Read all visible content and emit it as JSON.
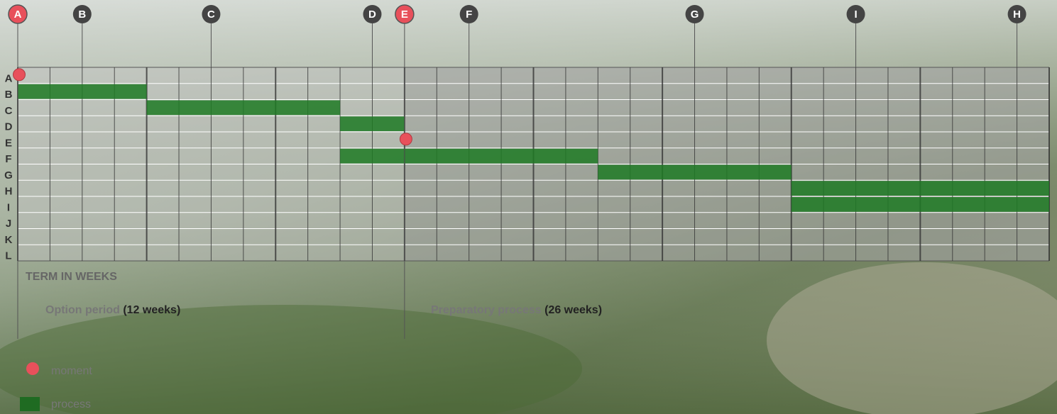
{
  "markers": [
    {
      "label": "A",
      "week": 0,
      "highlight": true
    },
    {
      "label": "B",
      "week": 2,
      "highlight": false
    },
    {
      "label": "C",
      "week": 6,
      "highlight": false
    },
    {
      "label": "D",
      "week": 11,
      "highlight": false
    },
    {
      "label": "E",
      "week": 12,
      "highlight": true
    },
    {
      "label": "F",
      "week": 14,
      "highlight": false
    },
    {
      "label": "G",
      "week": 21,
      "highlight": false
    },
    {
      "label": "I",
      "week": 26,
      "highlight": false
    },
    {
      "label": "H",
      "week": 31,
      "highlight": false
    }
  ],
  "rows": [
    "A",
    "B",
    "C",
    "D",
    "E",
    "F",
    "G",
    "H",
    "I",
    "J",
    "K",
    "L"
  ],
  "week_range": [
    0,
    32
  ],
  "bars": [
    {
      "row": 1,
      "start": 0,
      "end": 4
    },
    {
      "row": 2,
      "start": 4,
      "end": 10
    },
    {
      "row": 3,
      "start": 10,
      "end": 12
    },
    {
      "row": 5,
      "start": 10,
      "end": 18
    },
    {
      "row": 6,
      "start": 18,
      "end": 24
    },
    {
      "row": 7,
      "start": 24,
      "end": 32
    },
    {
      "row": 8,
      "start": 24,
      "end": 32
    }
  ],
  "moments": [
    {
      "row": 0,
      "week": 0
    },
    {
      "row": 4,
      "week": 12
    }
  ],
  "axis_label": "TERM IN WEEKS",
  "periods": [
    {
      "label": "Option period",
      "duration": "(12 weeks)"
    },
    {
      "label": "Preparatory process",
      "duration": "(26 weeks)"
    }
  ],
  "legend": [
    "moment",
    "process"
  ]
}
